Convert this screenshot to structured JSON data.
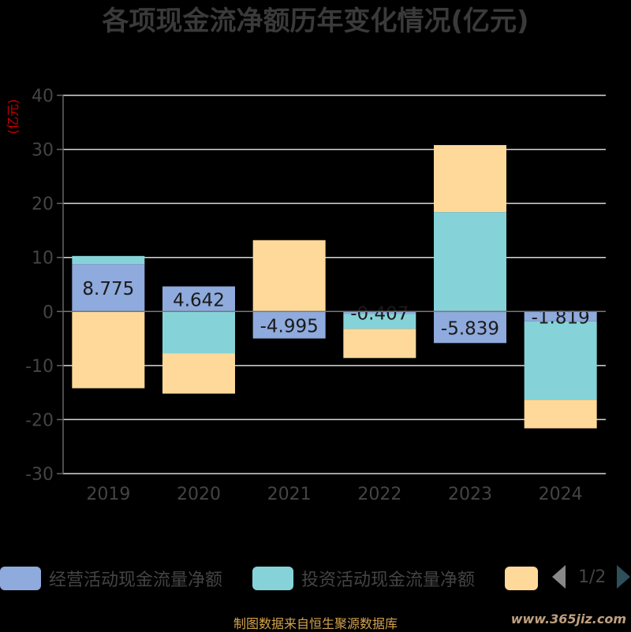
{
  "chart_data": {
    "type": "bar",
    "stacked": true,
    "title": "各项现金流净额历年变化情况(亿元)",
    "unit_label": "(亿元)",
    "categories": [
      "2019",
      "2020",
      "2021",
      "2022",
      "2023",
      "2024"
    ],
    "ylim": [
      -30,
      40
    ],
    "yticks": [
      40,
      30,
      20,
      10,
      0,
      -10,
      -20,
      -30
    ],
    "grid": true,
    "legend_position": "bottom",
    "series": [
      {
        "name": "经营活动现金流量净额",
        "color": "#8faadc",
        "values": [
          8.775,
          4.642,
          -4.995,
          -0.407,
          -5.839,
          -1.819
        ],
        "labels": [
          "8.775",
          "4.642",
          "-4.995",
          "-0.407",
          "-5.839",
          "-1.819"
        ]
      },
      {
        "name": "投资活动现金流量净额",
        "color": "#85d3d8",
        "values": [
          1.5,
          -7.7,
          0,
          -2.8,
          18.4,
          -14.5
        ]
      },
      {
        "name": "",
        "color": "#ffd99a",
        "values": [
          -14.2,
          -7.5,
          13.2,
          -5.4,
          12.4,
          -5.3
        ]
      }
    ]
  },
  "legend": {
    "items": [
      {
        "label": "经营活动现金流量净额",
        "color": "#8faadc"
      },
      {
        "label": "投资活动现金流量净额",
        "color": "#85d3d8"
      },
      {
        "label": "",
        "color": "#ffd99a"
      }
    ],
    "page_text": "1/2"
  },
  "source_text": "制图数据来自恒生聚源数据库",
  "watermark": "www.365jiz.com"
}
